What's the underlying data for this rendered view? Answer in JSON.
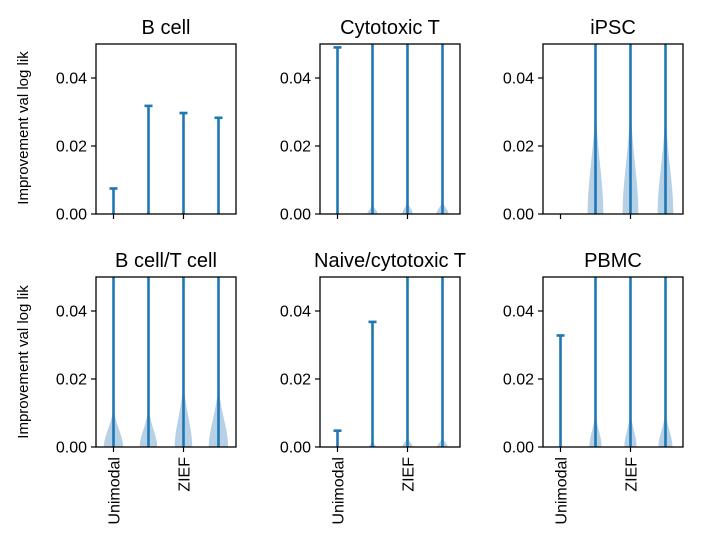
{
  "figure": {
    "ylabel": "Improvement val log lik",
    "color": "#1f77b4",
    "violin_color": "#b6d0e6",
    "baseline_color": "#444444"
  },
  "chart_data": [
    {
      "type": "violin",
      "title": "B cell",
      "ylim": [
        0,
        0.05
      ],
      "yticks": [
        "0.00",
        "0.02",
        "0.04"
      ],
      "yticks_values": [
        0,
        0.02,
        0.04
      ],
      "xticks": [
        "Unimodal",
        "ZIEF"
      ],
      "xtick_positions": [
        1,
        3
      ],
      "show_xtick_labels": false,
      "series": [
        {
          "max": 0.0075,
          "clipped": false,
          "violin_height": 0.0,
          "violin_width": 0.0
        },
        {
          "max": 0.0318,
          "clipped": false,
          "violin_height": 0.002,
          "violin_width": 0.1
        },
        {
          "max": 0.0297,
          "clipped": false,
          "violin_height": 0.002,
          "violin_width": 0.1
        },
        {
          "max": 0.0283,
          "clipped": false,
          "violin_height": 0.002,
          "violin_width": 0.1
        }
      ]
    },
    {
      "type": "violin",
      "title": "Cytotoxic T",
      "ylim": [
        0,
        0.05
      ],
      "yticks": [
        "0.00",
        "0.02",
        "0.04"
      ],
      "yticks_values": [
        0,
        0.02,
        0.04
      ],
      "xticks": [
        "Unimodal",
        "ZIEF"
      ],
      "xtick_positions": [
        1,
        3
      ],
      "show_xtick_labels": false,
      "series": [
        {
          "max": 0.049,
          "clipped": false,
          "violin_height": 0.001,
          "violin_width": 0.08
        },
        {
          "max": 0.05,
          "clipped": true,
          "violin_height": 0.003,
          "violin_width": 0.3
        },
        {
          "max": 0.05,
          "clipped": true,
          "violin_height": 0.004,
          "violin_width": 0.3
        },
        {
          "max": 0.05,
          "clipped": true,
          "violin_height": 0.004,
          "violin_width": 0.35
        }
      ]
    },
    {
      "type": "violin",
      "title": "iPSC",
      "ylim": [
        0,
        0.05
      ],
      "yticks": [
        "0.00",
        "0.02",
        "0.04"
      ],
      "yticks_values": [
        0,
        0.02,
        0.04
      ],
      "xticks": [
        "Unimodal",
        "ZIEF"
      ],
      "xtick_positions": [
        1,
        3
      ],
      "show_xtick_labels": false,
      "series": [
        {
          "max": 0.0,
          "clipped": false,
          "violin_height": 0.0,
          "violin_width": 0.0
        },
        {
          "max": 0.05,
          "clipped": true,
          "violin_height": 0.034,
          "violin_width": 0.45
        },
        {
          "max": 0.05,
          "clipped": true,
          "violin_height": 0.034,
          "violin_width": 0.45
        },
        {
          "max": 0.05,
          "clipped": true,
          "violin_height": 0.032,
          "violin_width": 0.45
        }
      ]
    },
    {
      "type": "violin",
      "title": "B cell/T cell",
      "ylim": [
        0,
        0.05
      ],
      "yticks": [
        "0.00",
        "0.02",
        "0.04"
      ],
      "yticks_values": [
        0,
        0.02,
        0.04
      ],
      "xticks": [
        "Unimodal",
        "ZIEF"
      ],
      "xtick_positions": [
        1,
        3
      ],
      "show_xtick_labels": true,
      "series": [
        {
          "max": 0.05,
          "clipped": true,
          "violin_height": 0.012,
          "violin_width": 0.55
        },
        {
          "max": 0.05,
          "clipped": true,
          "violin_height": 0.012,
          "violin_width": 0.5
        },
        {
          "max": 0.05,
          "clipped": true,
          "violin_height": 0.02,
          "violin_width": 0.5
        },
        {
          "max": 0.05,
          "clipped": true,
          "violin_height": 0.019,
          "violin_width": 0.55
        }
      ]
    },
    {
      "type": "violin",
      "title": "Naive/cytotoxic T",
      "ylim": [
        0,
        0.05
      ],
      "yticks": [
        "0.00",
        "0.02",
        "0.04"
      ],
      "yticks_values": [
        0,
        0.02,
        0.04
      ],
      "xticks": [
        "Unimodal",
        "ZIEF"
      ],
      "xtick_positions": [
        1,
        3
      ],
      "show_xtick_labels": true,
      "series": [
        {
          "max": 0.0048,
          "clipped": false,
          "violin_height": 0.0,
          "violin_width": 0.0
        },
        {
          "max": 0.0368,
          "clipped": false,
          "violin_height": 0.002,
          "violin_width": 0.2
        },
        {
          "max": 0.05,
          "clipped": true,
          "violin_height": 0.003,
          "violin_width": 0.3
        },
        {
          "max": 0.05,
          "clipped": true,
          "violin_height": 0.003,
          "violin_width": 0.3
        }
      ]
    },
    {
      "type": "violin",
      "title": "PBMC",
      "ylim": [
        0,
        0.05
      ],
      "yticks": [
        "0.00",
        "0.02",
        "0.04"
      ],
      "yticks_values": [
        0,
        0.02,
        0.04
      ],
      "xticks": [
        "Unimodal",
        "ZIEF"
      ],
      "xtick_positions": [
        1,
        3
      ],
      "show_xtick_labels": true,
      "series": [
        {
          "max": 0.0328,
          "clipped": false,
          "violin_height": 0.001,
          "violin_width": 0.1
        },
        {
          "max": 0.05,
          "clipped": true,
          "violin_height": 0.011,
          "violin_width": 0.35
        },
        {
          "max": 0.05,
          "clipped": true,
          "violin_height": 0.011,
          "violin_width": 0.35
        },
        {
          "max": 0.05,
          "clipped": true,
          "violin_height": 0.011,
          "violin_width": 0.4
        }
      ]
    }
  ]
}
